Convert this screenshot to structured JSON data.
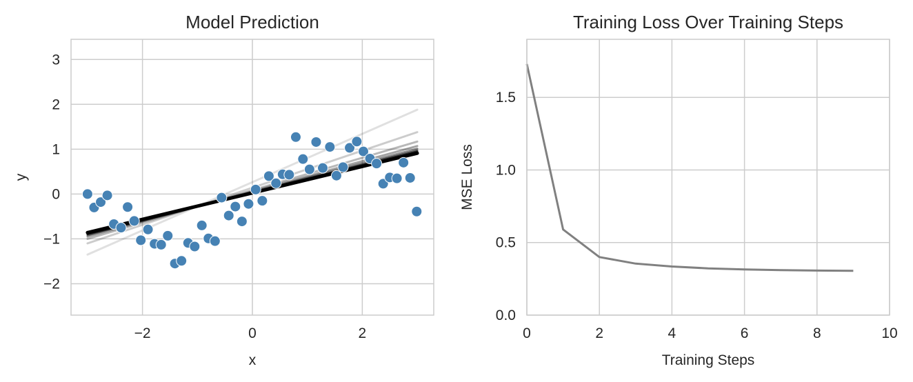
{
  "chart_data": [
    {
      "type": "scatter",
      "title": "Model Prediction",
      "xlabel": "x",
      "ylabel": "y",
      "xlim": [
        -3.3,
        3.3
      ],
      "ylim": [
        -2.7,
        3.45
      ],
      "xticks": [
        -2,
        0,
        2
      ],
      "yticks": [
        -2,
        -1,
        0,
        1,
        2,
        3
      ],
      "grid": true,
      "point_color": "#4682b4",
      "points": [
        {
          "x": -3.0,
          "y": 0.0
        },
        {
          "x": -2.88,
          "y": -0.3
        },
        {
          "x": -2.76,
          "y": -0.18
        },
        {
          "x": -2.64,
          "y": -0.03
        },
        {
          "x": -2.52,
          "y": -0.67
        },
        {
          "x": -2.39,
          "y": -0.75
        },
        {
          "x": -2.27,
          "y": -0.29
        },
        {
          "x": -2.15,
          "y": -0.6
        },
        {
          "x": -2.03,
          "y": -1.03
        },
        {
          "x": -1.9,
          "y": -0.79
        },
        {
          "x": -1.78,
          "y": -1.11
        },
        {
          "x": -1.66,
          "y": -1.13
        },
        {
          "x": -1.54,
          "y": -0.93
        },
        {
          "x": -1.41,
          "y": -1.55
        },
        {
          "x": -1.29,
          "y": -1.49
        },
        {
          "x": -1.17,
          "y": -1.09
        },
        {
          "x": -1.05,
          "y": -1.17
        },
        {
          "x": -0.92,
          "y": -0.7
        },
        {
          "x": -0.8,
          "y": -0.99
        },
        {
          "x": -0.68,
          "y": -1.05
        },
        {
          "x": -0.56,
          "y": -0.08
        },
        {
          "x": -0.43,
          "y": -0.48
        },
        {
          "x": -0.31,
          "y": -0.28
        },
        {
          "x": -0.19,
          "y": -0.61
        },
        {
          "x": -0.07,
          "y": -0.22
        },
        {
          "x": 0.06,
          "y": 0.1
        },
        {
          "x": 0.18,
          "y": -0.15
        },
        {
          "x": 0.3,
          "y": 0.4
        },
        {
          "x": 0.43,
          "y": 0.24
        },
        {
          "x": 0.55,
          "y": 0.44
        },
        {
          "x": 0.67,
          "y": 0.43
        },
        {
          "x": 0.79,
          "y": 1.27
        },
        {
          "x": 0.92,
          "y": 0.78
        },
        {
          "x": 1.04,
          "y": 0.55
        },
        {
          "x": 1.16,
          "y": 1.16
        },
        {
          "x": 1.28,
          "y": 0.58
        },
        {
          "x": 1.41,
          "y": 1.05
        },
        {
          "x": 1.53,
          "y": 0.41
        },
        {
          "x": 1.65,
          "y": 0.6
        },
        {
          "x": 1.77,
          "y": 1.03
        },
        {
          "x": 1.9,
          "y": 1.17
        },
        {
          "x": 2.02,
          "y": 0.95
        },
        {
          "x": 2.14,
          "y": 0.79
        },
        {
          "x": 2.26,
          "y": 0.68
        },
        {
          "x": 2.38,
          "y": 0.23
        },
        {
          "x": 2.5,
          "y": 0.37
        },
        {
          "x": 2.63,
          "y": 0.35
        },
        {
          "x": 2.75,
          "y": 0.7
        },
        {
          "x": 2.87,
          "y": 0.36
        },
        {
          "x": 2.99,
          "y": -0.39
        }
      ],
      "fit_lines": [
        {
          "step": 0,
          "x": [
            -3.0,
            3.0
          ],
          "y": [
            -1.35,
            1.88
          ],
          "opacity": 0.12
        },
        {
          "step": 1,
          "x": [
            -3.0,
            3.0
          ],
          "y": [
            -1.1,
            1.38
          ],
          "opacity": 0.2
        },
        {
          "step": 2,
          "x": [
            -3.0,
            3.0
          ],
          "y": [
            -1.0,
            1.17
          ],
          "opacity": 0.28
        },
        {
          "step": 3,
          "x": [
            -3.0,
            3.0
          ],
          "y": [
            -0.95,
            1.07
          ],
          "opacity": 0.36
        },
        {
          "step": 4,
          "x": [
            -3.0,
            3.0
          ],
          "y": [
            -0.92,
            1.01
          ],
          "opacity": 0.44
        },
        {
          "step": 5,
          "x": [
            -3.0,
            3.0
          ],
          "y": [
            -0.9,
            0.97
          ],
          "opacity": 0.55
        },
        {
          "step": 6,
          "x": [
            -3.0,
            3.0
          ],
          "y": [
            -0.89,
            0.95
          ],
          "opacity": 0.65
        },
        {
          "step": 7,
          "x": [
            -3.0,
            3.0
          ],
          "y": [
            -0.88,
            0.93
          ],
          "opacity": 0.75
        },
        {
          "step": 8,
          "x": [
            -3.0,
            3.0
          ],
          "y": [
            -0.87,
            0.92
          ],
          "opacity": 0.88
        },
        {
          "step": 9,
          "x": [
            -3.0,
            3.0
          ],
          "y": [
            -0.86,
            0.91
          ],
          "opacity": 1.0
        }
      ]
    },
    {
      "type": "line",
      "title": "Training Loss Over Training Steps",
      "xlabel": "Training Steps",
      "ylabel": "MSE Loss",
      "xlim": [
        0,
        10
      ],
      "ylim": [
        0.0,
        1.9
      ],
      "xticks": [
        0,
        2,
        4,
        6,
        8,
        10
      ],
      "yticks": [
        0.0,
        0.5,
        1.0,
        1.5
      ],
      "ytick_labels": [
        "0.0",
        "0.5",
        "1.0",
        "1.5"
      ],
      "grid": true,
      "line_color": "#808080",
      "series": [
        {
          "name": "loss",
          "x": [
            0,
            1,
            2,
            3,
            4,
            5,
            6,
            7,
            8,
            9
          ],
          "values": [
            1.73,
            0.59,
            0.4,
            0.355,
            0.335,
            0.322,
            0.315,
            0.31,
            0.307,
            0.305
          ]
        }
      ]
    }
  ]
}
